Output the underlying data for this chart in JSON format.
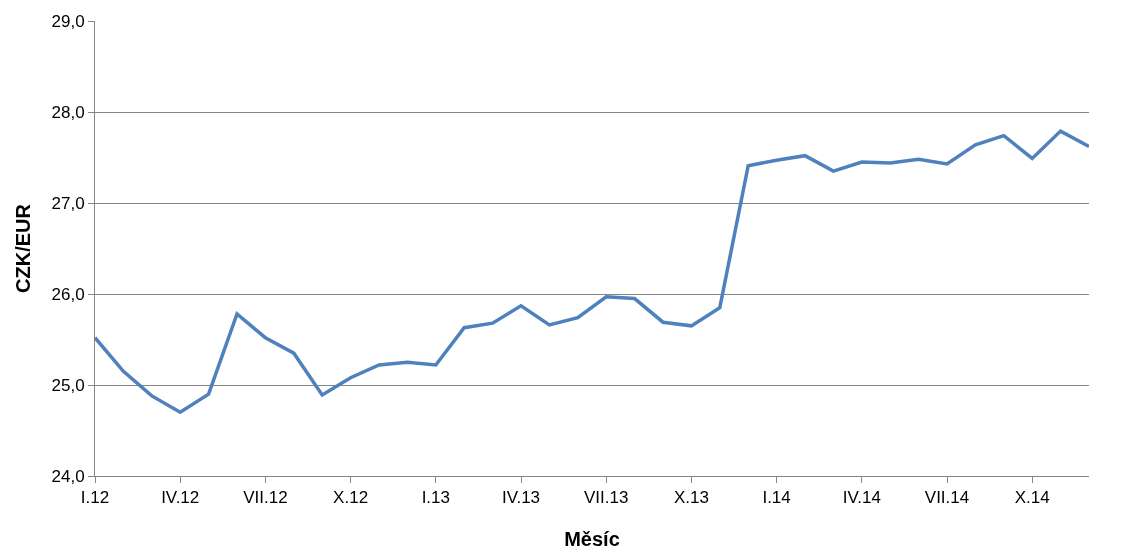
{
  "chart_data": {
    "type": "line",
    "xlabel": "Měsíc",
    "ylabel": "CZK/EUR",
    "categories": [
      "I.12",
      null,
      null,
      "IV.12",
      null,
      null,
      "VII.12",
      null,
      null,
      "X.12",
      null,
      null,
      "I.13",
      null,
      null,
      "IV.13",
      null,
      null,
      "VII.13",
      null,
      null,
      "X.13",
      null,
      null,
      "I.14",
      null,
      null,
      "IV.14",
      null,
      null,
      "VII.14",
      null,
      null,
      "X.14",
      null,
      null
    ],
    "series": [
      {
        "color": "#4f81bd",
        "values": [
          25.52,
          25.15,
          24.88,
          24.7,
          24.9,
          25.78,
          25.52,
          25.35,
          24.89,
          25.08,
          25.22,
          25.25,
          25.22,
          25.63,
          25.68,
          25.87,
          25.66,
          25.74,
          25.97,
          25.95,
          25.69,
          25.65,
          25.85,
          27.41,
          27.47,
          27.52,
          27.35,
          27.45,
          27.44,
          27.48,
          27.43,
          27.64,
          27.74,
          27.49,
          27.79,
          27.62
        ]
      }
    ],
    "ylim": [
      24,
      29
    ],
    "yticks": [
      {
        "value": 24,
        "label": "24,0"
      },
      {
        "value": 25,
        "label": "25,0"
      },
      {
        "value": 26,
        "label": "26,0"
      },
      {
        "value": 27,
        "label": "27,0"
      },
      {
        "value": 28,
        "label": "28,0"
      },
      {
        "value": 29,
        "label": "29,0"
      }
    ],
    "grid": "y",
    "legend": false,
    "marker": "none",
    "line_style": "solid"
  }
}
